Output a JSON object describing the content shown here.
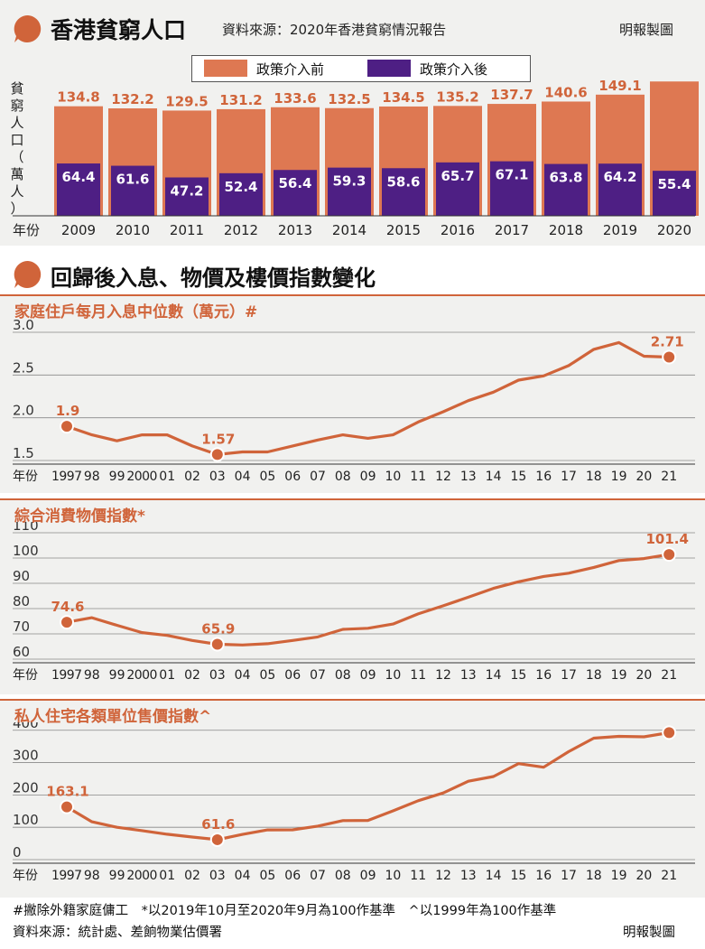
{
  "header": {
    "title": "香港貧窮人口",
    "source": "資料來源：2020年香港貧窮情況報告",
    "credit": "明報製圖"
  },
  "section2": {
    "title": "回歸後入息、物價及樓價指數變化"
  },
  "footer": {
    "notes": "#撇除外籍家庭傭工　*以2019年10月至2020年9月為100作基準　^以1999年為100作基準",
    "source": "資料來源：統計處、差餉物業估價署",
    "credit": "明報製圖"
  },
  "colors": {
    "accent": "#d0643a",
    "bar_before": "#de7852",
    "bar_after": "#4e1f84",
    "panel": "#f1f1ef"
  },
  "chart_data": [
    {
      "type": "bar",
      "ylabel": "貧窮人口（萬人）",
      "xlabel": "年份",
      "legend_position": "top",
      "categories": [
        "2009",
        "2010",
        "2011",
        "2012",
        "2013",
        "2014",
        "2015",
        "2016",
        "2017",
        "2018",
        "2019",
        "2020"
      ],
      "series": [
        {
          "name": "政策介入前",
          "values": [
            134.8,
            132.2,
            129.5,
            131.2,
            133.6,
            132.5,
            134.5,
            135.2,
            137.7,
            140.6,
            149.1,
            165.3
          ]
        },
        {
          "name": "政策介入後",
          "values": [
            64.4,
            61.6,
            47.2,
            52.4,
            56.4,
            59.3,
            58.6,
            65.7,
            67.1,
            63.8,
            64.2,
            55.4
          ]
        }
      ],
      "ylim": [
        0,
        170
      ]
    },
    {
      "type": "line",
      "title": "家庭住戶每月入息中位數（萬元）#",
      "xlabel": "年份",
      "x": [
        "1997",
        "98",
        "99",
        "2000",
        "01",
        "02",
        "03",
        "04",
        "05",
        "06",
        "07",
        "08",
        "09",
        "10",
        "11",
        "12",
        "13",
        "14",
        "15",
        "16",
        "17",
        "18",
        "19",
        "20",
        "21"
      ],
      "values": [
        1.9,
        1.8,
        1.73,
        1.8,
        1.8,
        1.67,
        1.57,
        1.6,
        1.6,
        1.67,
        1.74,
        1.8,
        1.76,
        1.8,
        1.95,
        2.07,
        2.2,
        2.3,
        2.44,
        2.49,
        2.61,
        2.8,
        2.88,
        2.72,
        2.71
      ],
      "labeled_points": [
        "1.9",
        "1.57",
        "2.71"
      ],
      "yticks": [
        "1.5",
        "2.0",
        "2.5",
        "3.0"
      ],
      "ylim": [
        1.5,
        3.0
      ],
      "grid": true
    },
    {
      "type": "line",
      "title": "綜合消費物價指數*",
      "xlabel": "年份",
      "x": [
        "1997",
        "98",
        "99",
        "2000",
        "01",
        "02",
        "03",
        "04",
        "05",
        "06",
        "07",
        "08",
        "09",
        "10",
        "11",
        "12",
        "13",
        "14",
        "15",
        "16",
        "17",
        "18",
        "19",
        "20",
        "21"
      ],
      "values": [
        74.6,
        76.4,
        73.4,
        70.5,
        69.4,
        67.4,
        65.9,
        65.6,
        66.1,
        67.4,
        68.8,
        71.8,
        72.2,
        73.9,
        77.9,
        81.1,
        84.5,
        88.0,
        90.6,
        92.7,
        94.0,
        96.3,
        99.0,
        99.8,
        101.4
      ],
      "labeled_points": [
        "74.6",
        "65.9",
        "101.4"
      ],
      "yticks": [
        "60",
        "70",
        "80",
        "90",
        "100",
        "110"
      ],
      "ylim": [
        60,
        110
      ],
      "grid": true
    },
    {
      "type": "line",
      "title": "私人住宅各類單位售價指數^",
      "xlabel": "年份",
      "x": [
        "1997",
        "98",
        "99",
        "2000",
        "01",
        "02",
        "03",
        "04",
        "05",
        "06",
        "07",
        "08",
        "09",
        "10",
        "11",
        "12",
        "13",
        "14",
        "15",
        "16",
        "17",
        "18",
        "19",
        "20",
        "21"
      ],
      "values": [
        163.1,
        117.0,
        100.0,
        89.6,
        78.4,
        69.9,
        61.6,
        78.0,
        92.0,
        92.2,
        103.5,
        120.5,
        121.3,
        150.9,
        182.1,
        206.2,
        242.4,
        256.9,
        296.8,
        285.6,
        333.9,
        375.5,
        381.0,
        379.7,
        392.7
      ],
      "labeled_points": [
        "163.1",
        "61.6",
        "392.7"
      ],
      "yticks": [
        "0",
        "100",
        "200",
        "300",
        "400"
      ],
      "ylim": [
        0,
        430
      ],
      "grid": true
    }
  ]
}
